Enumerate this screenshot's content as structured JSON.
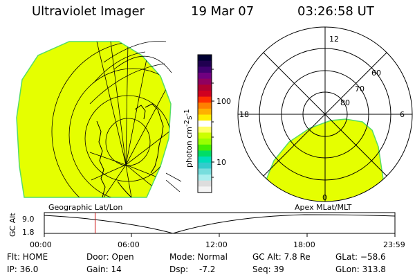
{
  "header": {
    "instrument": "Ultraviolet Imager",
    "date": "19 Mar 07",
    "time": "03:26:58 UT"
  },
  "colorbar": {
    "unit_main": "photon cm",
    "unit_exp1": "-2",
    "unit_mid": "s",
    "unit_exp2": "-1",
    "ticks": [
      "100",
      "10"
    ],
    "colors": [
      "#000033",
      "#200050",
      "#400070",
      "#700080",
      "#900060",
      "#b00030",
      "#d00020",
      "#ff3000",
      "#ff8000",
      "#ffb000",
      "#ffee00",
      "#ffffff",
      "#ffff66",
      "#ccff00",
      "#99ff00",
      "#44ee00",
      "#00dd66",
      "#00ddbb",
      "#33cccc",
      "#77dddd",
      "#aaeeee",
      "#dddddd",
      "#f4f4f4"
    ]
  },
  "polar": {
    "clock_labels": [
      "12",
      "18",
      "6",
      "0"
    ],
    "lat_labels": [
      "60",
      "70",
      "80"
    ]
  },
  "timeline": {
    "left_label": "Geographic Lat/Lon",
    "right_label": "Apex MLat/MLT",
    "axis_title": "GC Alt",
    "y_ticks": [
      "9.0",
      "1.8"
    ],
    "x_ticks": [
      "00:00",
      "06:00",
      "12:00",
      "18:00",
      "23:59"
    ],
    "current_time_fraction": 0.145
  },
  "info": {
    "flt": "Flt: HOME",
    "ip": "IP: 36.0",
    "door": "Door: Open",
    "gain": "Gain: 14",
    "mode": "Mode: Normal",
    "dsp_label": "Dsp:",
    "dsp_value": "-7.2",
    "gc_alt": "GC Alt: 7.8 Re",
    "seq": "Seq: 39",
    "glat": "GLat: −58.6",
    "glon": "GLon: 313.8"
  },
  "colors": {
    "auroral_fill": "#e5ff00",
    "limb": "#55dd66",
    "time_marker": "#cc0000"
  }
}
